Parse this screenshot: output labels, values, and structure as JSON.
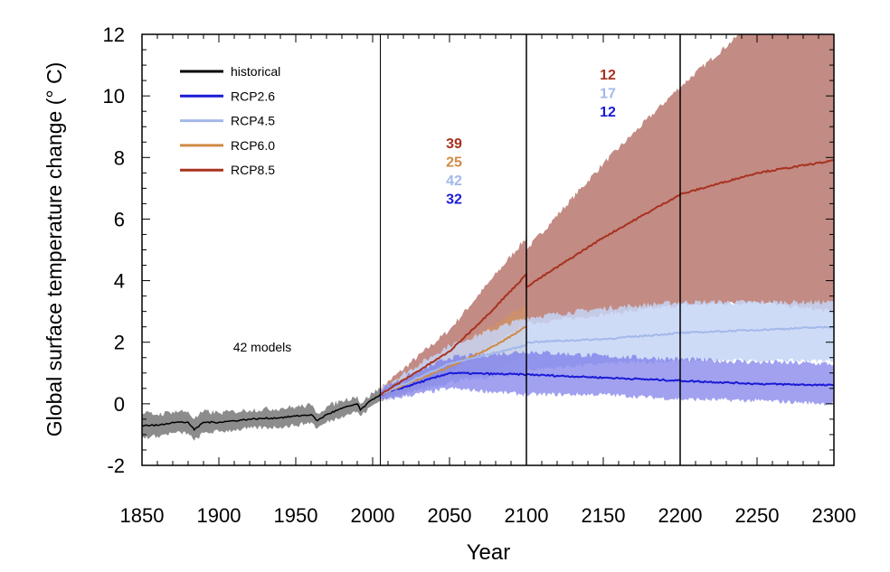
{
  "chart_data": {
    "type": "line",
    "title": "",
    "xlabel": "Year",
    "ylabel": "Global surface temperature change (° C)",
    "xlim": [
      1850,
      2300
    ],
    "ylim": [
      -2,
      12
    ],
    "xticks": [
      1850,
      1900,
      1950,
      2000,
      2050,
      2100,
      2150,
      2200,
      2250,
      2300
    ],
    "yticks": [
      -2,
      0,
      2,
      4,
      6,
      8,
      10,
      12
    ],
    "vertical_lines": [
      2005,
      2100,
      2200
    ],
    "grid": false,
    "legend_position": "top-left",
    "annotation": "42 models",
    "model_counts": {
      "2006_2100": [
        {
          "series": "RCP8.5",
          "count": "39"
        },
        {
          "series": "RCP6.0",
          "count": "25"
        },
        {
          "series": "RCP4.5",
          "count": "42"
        },
        {
          "series": "RCP2.6",
          "count": "32"
        }
      ],
      "2101_2300": [
        {
          "series": "RCP8.5",
          "count": "12"
        },
        {
          "series": "RCP4.5",
          "count": "17"
        },
        {
          "series": "RCP2.6",
          "count": "12"
        }
      ]
    },
    "series": [
      {
        "name": "historical",
        "color": "#000000",
        "band_color": "#7f7f7f",
        "x": [
          1850,
          1860,
          1870,
          1880,
          1884,
          1890,
          1900,
          1910,
          1920,
          1940,
          1950,
          1960,
          1964,
          1970,
          1980,
          1990,
          1992,
          2000,
          2005
        ],
        "y": [
          -0.7,
          -0.7,
          -0.6,
          -0.6,
          -0.85,
          -0.6,
          -0.6,
          -0.55,
          -0.5,
          -0.45,
          -0.4,
          -0.35,
          -0.55,
          -0.35,
          -0.15,
          0.0,
          -0.2,
          0.15,
          0.3
        ],
        "lower": [
          -1.1,
          -1.05,
          -0.95,
          -0.95,
          -1.2,
          -0.95,
          -0.9,
          -0.85,
          -0.8,
          -0.75,
          -0.7,
          -0.6,
          -0.8,
          -0.6,
          -0.4,
          -0.25,
          -0.4,
          -0.05,
          0.1
        ],
        "upper": [
          -0.3,
          -0.35,
          -0.25,
          -0.25,
          -0.5,
          -0.25,
          -0.3,
          -0.25,
          -0.2,
          -0.15,
          -0.1,
          -0.05,
          -0.3,
          -0.1,
          0.1,
          0.25,
          0.0,
          0.35,
          0.5
        ]
      },
      {
        "name": "RCP8.5",
        "color": "#a8321f",
        "band_color": "#a85a50",
        "x": [
          2005,
          2050,
          2075,
          2100,
          2100,
          2150,
          2200,
          2250,
          2300
        ],
        "y": [
          0.3,
          1.7,
          2.9,
          4.2,
          3.8,
          5.4,
          6.8,
          7.5,
          7.9
        ],
        "lower": [
          0.1,
          1.0,
          1.8,
          2.6,
          2.6,
          2.9,
          3.2,
          3.3,
          3.0
        ],
        "upper": [
          0.5,
          2.4,
          3.9,
          5.4,
          5.0,
          7.8,
          10.3,
          12.5,
          12.5
        ]
      },
      {
        "name": "RCP6.0",
        "color": "#d08a45",
        "band_color": "#d9955a",
        "x": [
          2005,
          2050,
          2080,
          2100
        ],
        "y": [
          0.3,
          1.2,
          1.9,
          2.5
        ],
        "lower": [
          0.1,
          0.8,
          1.1,
          1.5
        ],
        "upper": [
          0.5,
          1.7,
          2.6,
          3.2
        ]
      },
      {
        "name": "RCP4.5",
        "color": "#a3b8ea",
        "band_color": "#c6d5f6",
        "x": [
          2005,
          2050,
          2100,
          2100,
          2150,
          2200,
          2250,
          2300
        ],
        "y": [
          0.3,
          1.3,
          1.9,
          2.0,
          2.1,
          2.3,
          2.4,
          2.5
        ],
        "lower": [
          0.1,
          0.7,
          1.0,
          1.1,
          1.3,
          1.4,
          1.4,
          1.4
        ],
        "upper": [
          0.5,
          1.9,
          2.8,
          2.8,
          3.1,
          3.3,
          3.3,
          3.3
        ]
      },
      {
        "name": "RCP2.6",
        "color": "#1a1ad6",
        "band_color": "#6f6fe8",
        "x": [
          2005,
          2050,
          2100,
          2150,
          2200,
          2250,
          2300
        ],
        "y": [
          0.3,
          1.0,
          0.95,
          0.85,
          0.75,
          0.65,
          0.6
        ],
        "lower": [
          0.1,
          0.5,
          0.3,
          0.3,
          0.15,
          0.1,
          0.0
        ],
        "upper": [
          0.5,
          1.5,
          1.7,
          1.55,
          1.45,
          1.35,
          1.3
        ]
      }
    ]
  }
}
